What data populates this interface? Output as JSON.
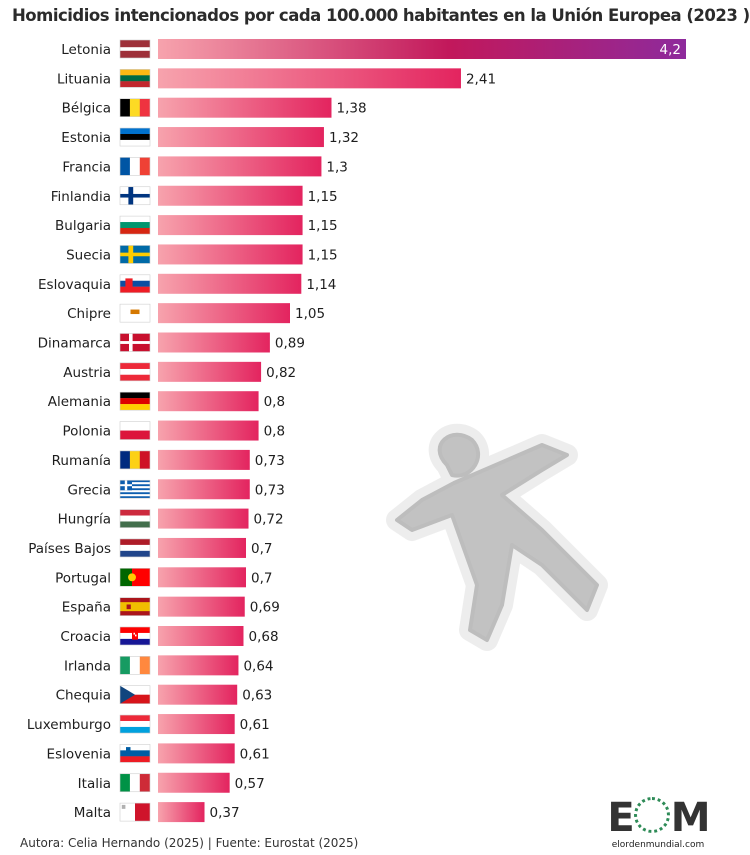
{
  "title": "Homicidios intencionados por cada 100.000 habitantes en la Unión Europea (2023 )",
  "footer": "Autora: Celia Hernando (2025) | Fuente: Eurostat (2025)",
  "logo": {
    "mark": "EOM",
    "url": "elordenmundial.com"
  },
  "colors": {
    "bar_start": "#f7a3ad",
    "bar_end": "#e3245f",
    "top_bar_end": "#8e2a9c",
    "accent": "#c2185b"
  },
  "illustration": "body-outline-icon",
  "chart_data": {
    "type": "bar",
    "orientation": "horizontal",
    "title": "Homicidios intencionados por cada 100.000 habitantes en la Unión Europea (2023 )",
    "categories": [
      "Letonia",
      "Lituania",
      "Bélgica",
      "Estonia",
      "Francia",
      "Finlandia",
      "Bulgaria",
      "Suecia",
      "Eslovaquia",
      "Chipre",
      "Dinamarca",
      "Austria",
      "Alemania",
      "Polonia",
      "Rumanía",
      "Grecia",
      "Hungría",
      "Países Bajos",
      "Portugal",
      "España",
      "Croacia",
      "Irlanda",
      "Chequia",
      "Luxemburgo",
      "Eslovenia",
      "Italia",
      "Malta"
    ],
    "values": [
      4.2,
      2.41,
      1.38,
      1.32,
      1.3,
      1.15,
      1.15,
      1.15,
      1.14,
      1.05,
      0.89,
      0.82,
      0.8,
      0.8,
      0.73,
      0.73,
      0.72,
      0.7,
      0.7,
      0.69,
      0.68,
      0.64,
      0.63,
      0.61,
      0.61,
      0.57,
      0.37
    ],
    "value_labels": [
      "4,2",
      "2,41",
      "1,38",
      "1,32",
      "1,3",
      "1,15",
      "1,15",
      "1,15",
      "1,14",
      "1,05",
      "0,89",
      "0,82",
      "0,8",
      "0,8",
      "0,73",
      "0,73",
      "0,72",
      "0,7",
      "0,7",
      "0,69",
      "0,68",
      "0,64",
      "0,63",
      "0,61",
      "0,61",
      "0,57",
      "0,37"
    ],
    "flags": [
      "latvia-flag-icon",
      "lithuania-flag-icon",
      "belgium-flag-icon",
      "estonia-flag-icon",
      "france-flag-icon",
      "finland-flag-icon",
      "bulgaria-flag-icon",
      "sweden-flag-icon",
      "slovakia-flag-icon",
      "cyprus-flag-icon",
      "denmark-flag-icon",
      "austria-flag-icon",
      "germany-flag-icon",
      "poland-flag-icon",
      "romania-flag-icon",
      "greece-flag-icon",
      "hungary-flag-icon",
      "netherlands-flag-icon",
      "portugal-flag-icon",
      "spain-flag-icon",
      "croatia-flag-icon",
      "ireland-flag-icon",
      "czechia-flag-icon",
      "luxembourg-flag-icon",
      "slovenia-flag-icon",
      "italy-flag-icon",
      "malta-flag-icon"
    ],
    "xlim": [
      0,
      4.2
    ],
    "grid": false,
    "legend": "none"
  }
}
